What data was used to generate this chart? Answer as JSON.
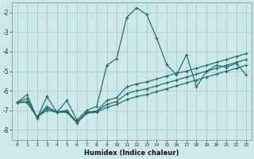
{
  "xlabel": "Humidex (Indice chaleur)",
  "bg_color": "#cce8e8",
  "grid_color": "#aacccc",
  "line_color": "#1a6b6b",
  "x_values": [
    0,
    1,
    2,
    3,
    4,
    5,
    6,
    7,
    8,
    9,
    10,
    11,
    12,
    13,
    14,
    15,
    16,
    17,
    18,
    19,
    20,
    21,
    22,
    23
  ],
  "line1_y": [
    -6.6,
    -6.2,
    -7.4,
    -6.3,
    -7.1,
    -6.5,
    -7.5,
    -7.0,
    -6.8,
    -4.7,
    -4.35,
    -2.25,
    -1.75,
    -2.1,
    -3.3,
    -4.65,
    -5.2,
    -4.15,
    -5.8,
    -5.0,
    -4.7,
    -4.8,
    -4.6,
    -5.2
  ],
  "line2_y": [
    -6.6,
    -6.4,
    -7.35,
    -6.8,
    -7.1,
    -7.0,
    -7.6,
    -7.1,
    -7.05,
    -6.5,
    -6.35,
    -5.8,
    -5.65,
    -5.55,
    -5.4,
    -5.25,
    -5.1,
    -5.0,
    -4.85,
    -4.7,
    -4.55,
    -4.4,
    -4.25,
    -4.1
  ],
  "line3_y": [
    -6.6,
    -6.55,
    -7.35,
    -6.9,
    -7.1,
    -7.05,
    -7.6,
    -7.1,
    -7.05,
    -6.7,
    -6.55,
    -6.15,
    -6.0,
    -5.9,
    -5.75,
    -5.6,
    -5.45,
    -5.3,
    -5.15,
    -5.0,
    -4.85,
    -4.7,
    -4.55,
    -4.4
  ],
  "line4_y": [
    -6.6,
    -6.6,
    -7.35,
    -7.0,
    -7.1,
    -7.1,
    -7.65,
    -7.15,
    -7.1,
    -6.85,
    -6.7,
    -6.45,
    -6.3,
    -6.2,
    -6.05,
    -5.9,
    -5.75,
    -5.6,
    -5.45,
    -5.3,
    -5.15,
    -5.0,
    -4.85,
    -4.7
  ],
  "ylim": [
    -8.5,
    -1.5
  ],
  "xlim": [
    -0.5,
    23.5
  ],
  "yticks": [
    -8,
    -7,
    -6,
    -5,
    -4,
    -3,
    -2
  ],
  "xtick_labels": [
    "0",
    "1",
    "2",
    "3",
    "4",
    "5",
    "6",
    "7",
    "8",
    "9",
    "10",
    "11",
    "12",
    "13",
    "14",
    "15",
    "16",
    "17",
    "18",
    "19",
    "20",
    "21",
    "22",
    "23"
  ]
}
